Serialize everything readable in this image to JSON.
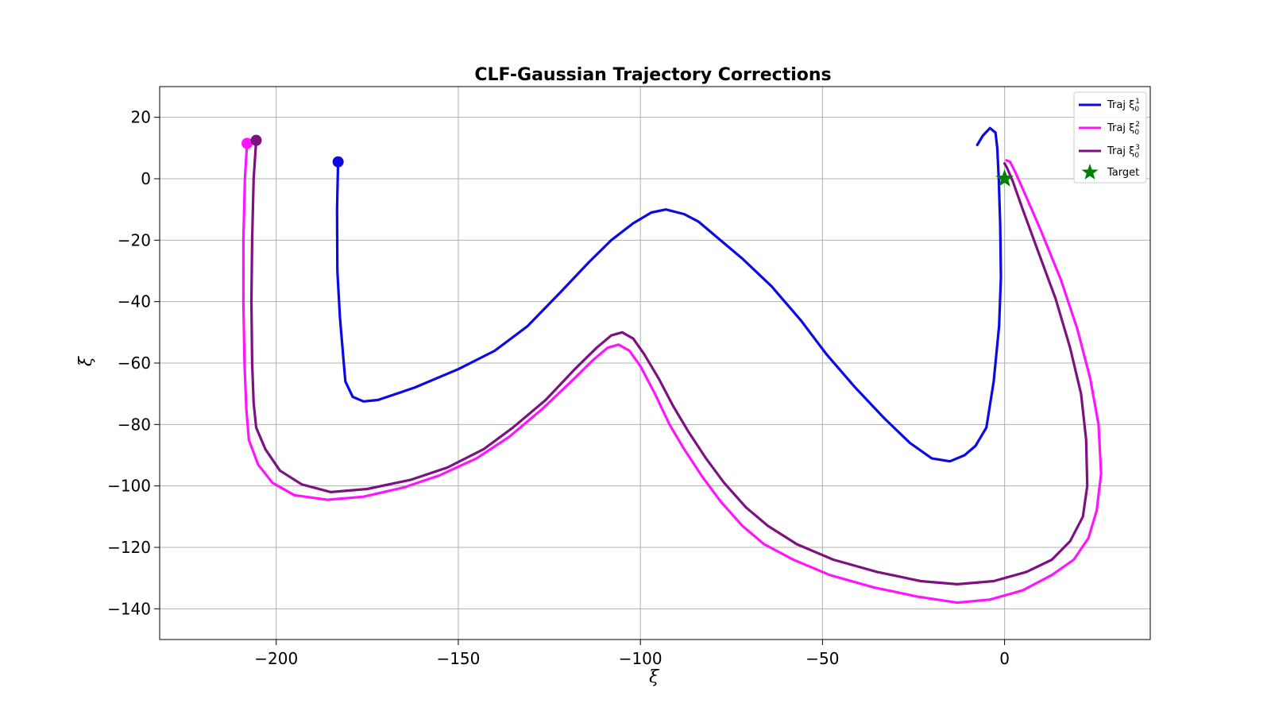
{
  "chart_data": {
    "type": "line",
    "title": "CLF-Gaussian Trajectory Corrections",
    "xlabel": "ξ",
    "ylabel": "ξ̇",
    "xlim": [
      -232,
      40
    ],
    "ylim": [
      -150,
      30
    ],
    "xticks": [
      -200,
      -150,
      -100,
      -50,
      0
    ],
    "yticks": [
      20,
      0,
      -20,
      -40,
      -60,
      -80,
      -100,
      -120,
      -140
    ],
    "xtick_labels": [
      "−200",
      "−150",
      "−100",
      "−50",
      "0"
    ],
    "ytick_labels": [
      "20",
      "0",
      "−20",
      "−40",
      "−60",
      "−80",
      "−100",
      "−120",
      "−140"
    ],
    "grid": true,
    "legend_position": "top-right",
    "series": [
      {
        "name": "Traj ξ01",
        "legend_base": "Traj ξ",
        "legend_sub": "0",
        "legend_sup": "1",
        "color": "#0a0ae6",
        "start": [
          -183,
          5.5
        ],
        "points": [
          [
            -183,
            5.5
          ],
          [
            -183.3,
            -10
          ],
          [
            -183.2,
            -30
          ],
          [
            -182.5,
            -45
          ],
          [
            -181.6,
            -58
          ],
          [
            -181,
            -66
          ],
          [
            -179,
            -71
          ],
          [
            -176,
            -72.5
          ],
          [
            -172,
            -72
          ],
          [
            -162,
            -68
          ],
          [
            -150,
            -62
          ],
          [
            -140,
            -56
          ],
          [
            -131,
            -48
          ],
          [
            -122,
            -37
          ],
          [
            -114,
            -27
          ],
          [
            -108,
            -20
          ],
          [
            -102,
            -14.5
          ],
          [
            -97,
            -11
          ],
          [
            -93,
            -10
          ],
          [
            -88,
            -11.5
          ],
          [
            -84,
            -14
          ],
          [
            -79,
            -19
          ],
          [
            -72,
            -26
          ],
          [
            -64,
            -35
          ],
          [
            -56,
            -46
          ],
          [
            -49,
            -57
          ],
          [
            -41,
            -68
          ],
          [
            -33,
            -78
          ],
          [
            -26,
            -86
          ],
          [
            -20,
            -91
          ],
          [
            -15,
            -92
          ],
          [
            -11,
            -90
          ],
          [
            -8,
            -87
          ],
          [
            -5,
            -81
          ],
          [
            -3,
            -66
          ],
          [
            -1.5,
            -48
          ],
          [
            -1,
            -32
          ],
          [
            -1.2,
            -15
          ],
          [
            -1.6,
            0
          ],
          [
            -2,
            10
          ],
          [
            -2.5,
            15
          ],
          [
            -4,
            16.5
          ],
          [
            -6,
            14
          ],
          [
            -7.5,
            11
          ]
        ]
      },
      {
        "name": "Traj ξ02",
        "legend_base": "Traj ξ",
        "legend_sub": "0",
        "legend_sup": "2",
        "color": "#ff14ff",
        "start": [
          -208,
          11.5
        ],
        "points": [
          [
            -208,
            11.5
          ],
          [
            -208.6,
            0
          ],
          [
            -209,
            -20
          ],
          [
            -209,
            -40
          ],
          [
            -208.7,
            -60
          ],
          [
            -208.2,
            -75
          ],
          [
            -207.5,
            -85
          ],
          [
            -205,
            -93
          ],
          [
            -201,
            -99
          ],
          [
            -195,
            -103
          ],
          [
            -186,
            -104.5
          ],
          [
            -176,
            -103.5
          ],
          [
            -165,
            -100.5
          ],
          [
            -155,
            -96.5
          ],
          [
            -145,
            -91
          ],
          [
            -136,
            -84
          ],
          [
            -127,
            -75
          ],
          [
            -119,
            -66
          ],
          [
            -113,
            -59
          ],
          [
            -109,
            -55
          ],
          [
            -106,
            -54
          ],
          [
            -103,
            -56
          ],
          [
            -100,
            -61
          ],
          [
            -96,
            -70
          ],
          [
            -92,
            -80
          ],
          [
            -88,
            -88
          ],
          [
            -83,
            -97
          ],
          [
            -78,
            -105
          ],
          [
            -72,
            -113
          ],
          [
            -66,
            -119
          ],
          [
            -58,
            -124
          ],
          [
            -48,
            -129
          ],
          [
            -36,
            -133
          ],
          [
            -24,
            -136
          ],
          [
            -13,
            -138
          ],
          [
            -4,
            -137
          ],
          [
            5,
            -134
          ],
          [
            13,
            -129
          ],
          [
            19,
            -124
          ],
          [
            23,
            -117
          ],
          [
            25.3,
            -108
          ],
          [
            26.5,
            -96
          ],
          [
            25.8,
            -80
          ],
          [
            23.5,
            -65
          ],
          [
            20,
            -49
          ],
          [
            15.5,
            -33
          ],
          [
            10,
            -17
          ],
          [
            6,
            -6
          ],
          [
            3,
            2
          ],
          [
            1.5,
            5.5
          ],
          [
            0.5,
            6
          ]
        ]
      },
      {
        "name": "Traj ξ03",
        "legend_base": "Traj ξ",
        "legend_sub": "0",
        "legend_sup": "3",
        "color": "#7d1180",
        "start": [
          -205.5,
          12.5
        ],
        "points": [
          [
            -205.5,
            12.5
          ],
          [
            -206.2,
            0
          ],
          [
            -206.6,
            -20
          ],
          [
            -206.8,
            -40
          ],
          [
            -206.6,
            -60
          ],
          [
            -206.2,
            -73
          ],
          [
            -205.5,
            -81
          ],
          [
            -203,
            -88
          ],
          [
            -199,
            -95
          ],
          [
            -193,
            -99.5
          ],
          [
            -185,
            -102
          ],
          [
            -175,
            -101
          ],
          [
            -163,
            -98
          ],
          [
            -153,
            -94
          ],
          [
            -143,
            -88
          ],
          [
            -135,
            -81
          ],
          [
            -126,
            -72
          ],
          [
            -118,
            -62
          ],
          [
            -112,
            -55
          ],
          [
            -108,
            -51
          ],
          [
            -105,
            -50
          ],
          [
            -102,
            -52
          ],
          [
            -99,
            -57
          ],
          [
            -95,
            -65
          ],
          [
            -91,
            -74
          ],
          [
            -87,
            -82
          ],
          [
            -82,
            -91
          ],
          [
            -77,
            -99
          ],
          [
            -71,
            -107
          ],
          [
            -65,
            -113
          ],
          [
            -57,
            -119
          ],
          [
            -47,
            -124
          ],
          [
            -35,
            -128
          ],
          [
            -23,
            -131
          ],
          [
            -13,
            -132
          ],
          [
            -3,
            -131
          ],
          [
            6,
            -128
          ],
          [
            13,
            -124
          ],
          [
            18,
            -118
          ],
          [
            21.5,
            -110
          ],
          [
            22.7,
            -100
          ],
          [
            22.4,
            -85
          ],
          [
            21,
            -70
          ],
          [
            18,
            -55
          ],
          [
            14,
            -39
          ],
          [
            9,
            -23
          ],
          [
            5,
            -10
          ],
          [
            2.3,
            -1
          ],
          [
            0.7,
            3.5
          ],
          [
            0,
            5
          ]
        ]
      }
    ],
    "target": {
      "name": "Target",
      "x": 0,
      "y": 0,
      "color": "#008000"
    }
  }
}
